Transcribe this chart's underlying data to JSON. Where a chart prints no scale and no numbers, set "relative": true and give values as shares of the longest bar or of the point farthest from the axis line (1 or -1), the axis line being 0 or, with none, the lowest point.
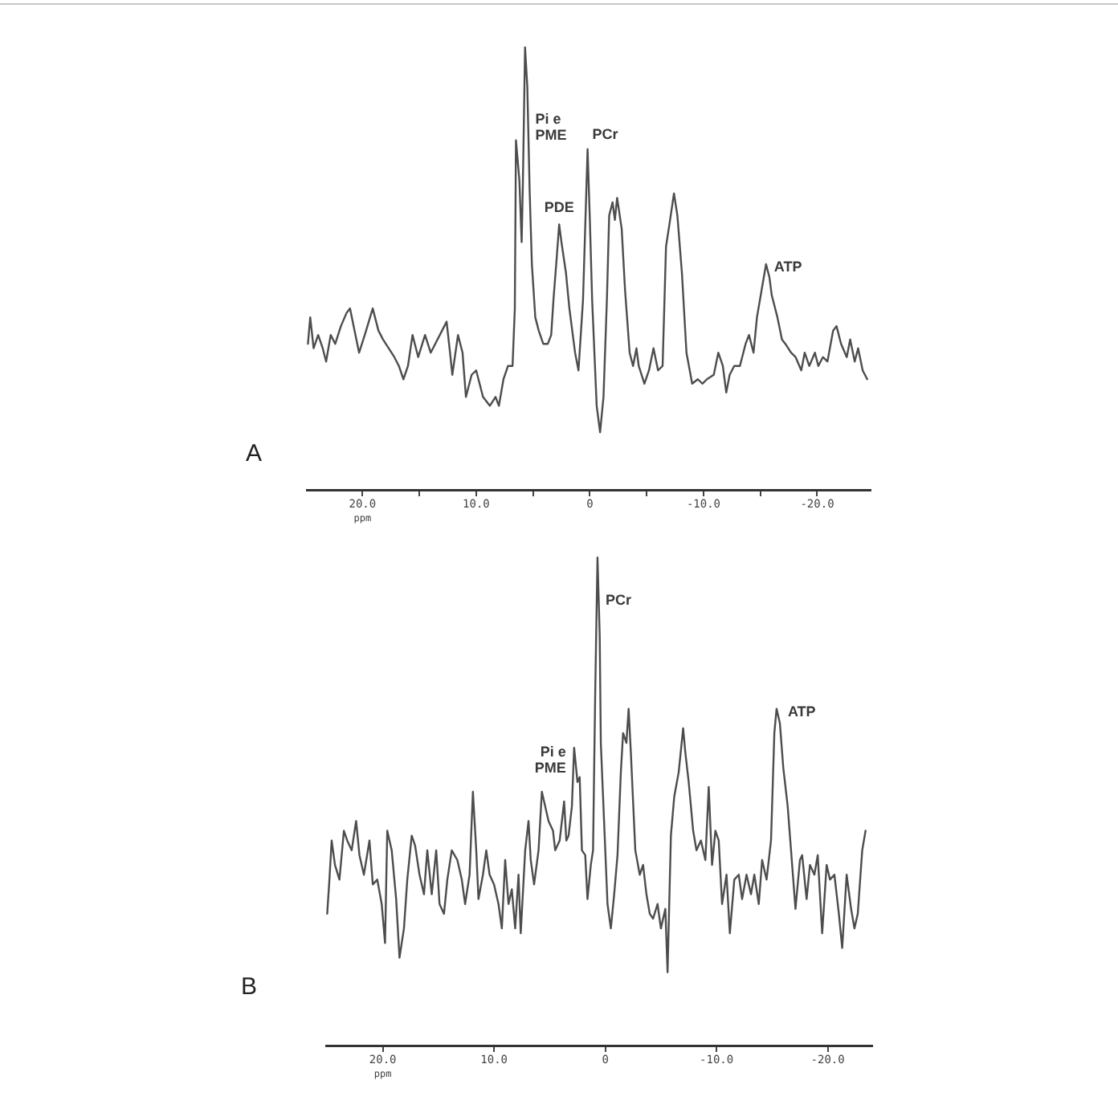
{
  "chart_data": [
    {
      "type": "line",
      "title": "A",
      "xlabel": "ppm",
      "relative": true,
      "color": "#4d4d4d",
      "xlim": [
        24.9,
        -24.7
      ],
      "xticks": [
        {
          "value": 20,
          "label": "20.0"
        },
        {
          "value": 15,
          "label": null
        },
        {
          "value": 10,
          "label": "10.0"
        },
        {
          "value": 5,
          "label": null
        },
        0,
        {
          "value": -5,
          "label": null
        },
        {
          "value": -10,
          "label": "-10.0"
        },
        {
          "value": -15,
          "label": null
        },
        {
          "value": -20,
          "label": "-20.0"
        }
      ],
      "x": [
        24.8,
        24.6,
        24.3,
        23.9,
        23.5,
        23.2,
        22.8,
        22.4,
        21.9,
        21.4,
        21.1,
        20.7,
        20.3,
        19.8,
        19.1,
        18.6,
        18.2,
        17.7,
        17.2,
        16.8,
        16.4,
        16.0,
        15.6,
        15.1,
        14.5,
        14.0,
        13.6,
        13.0,
        12.6,
        12.3,
        12.1,
        11.6,
        11.2,
        10.9,
        10.4,
        10.0,
        9.4,
        8.8,
        8.3,
        8.0,
        7.6,
        7.2,
        6.8,
        6.6,
        6.5,
        6.2,
        6.0,
        5.9,
        5.7,
        5.5,
        5.3,
        5.1,
        4.8,
        4.5,
        4.1,
        3.7,
        3.4,
        3.2,
        2.9,
        2.7,
        2.5,
        2.1,
        1.8,
        1.3,
        1.0,
        0.6,
        0.2,
        0.0,
        -0.2,
        -0.6,
        -0.9,
        -1.2,
        -1.5,
        -1.7,
        -2.0,
        -2.2,
        -2.4,
        -2.8,
        -3.1,
        -3.5,
        -3.8,
        -4.1,
        -4.3,
        -4.8,
        -5.2,
        -5.6,
        -6.0,
        -6.4,
        -6.7,
        -7.0,
        -7.4,
        -7.7,
        -8.1,
        -8.5,
        -9.0,
        -9.5,
        -9.9,
        -10.3,
        -10.9,
        -11.3,
        -11.7,
        -12.0,
        -12.3,
        -12.7,
        -13.2,
        -13.7,
        -14.0,
        -14.4,
        -14.7,
        -15.1,
        -15.5,
        -15.8,
        -16.0,
        -16.5,
        -16.9,
        -17.2,
        -17.7,
        -18.1,
        -18.6,
        -18.9,
        -19.3,
        -19.8,
        -20.1,
        -20.5,
        -20.9,
        -21.4,
        -21.7,
        -22.1,
        -22.6,
        -22.9,
        -23.3,
        -23.6,
        -24.0,
        -24.4
      ],
      "values": [
        0.33,
        0.39,
        0.32,
        0.35,
        0.32,
        0.29,
        0.35,
        0.33,
        0.37,
        0.4,
        0.41,
        0.36,
        0.31,
        0.35,
        0.41,
        0.36,
        0.34,
        0.32,
        0.3,
        0.28,
        0.25,
        0.28,
        0.35,
        0.3,
        0.35,
        0.31,
        0.33,
        0.36,
        0.38,
        0.31,
        0.26,
        0.35,
        0.31,
        0.21,
        0.26,
        0.27,
        0.21,
        0.19,
        0.21,
        0.19,
        0.25,
        0.28,
        0.28,
        0.41,
        0.79,
        0.7,
        0.56,
        0.68,
        1.0,
        0.91,
        0.68,
        0.51,
        0.39,
        0.36,
        0.33,
        0.33,
        0.35,
        0.43,
        0.53,
        0.6,
        0.56,
        0.49,
        0.41,
        0.31,
        0.27,
        0.43,
        0.77,
        0.61,
        0.43,
        0.19,
        0.13,
        0.21,
        0.43,
        0.62,
        0.65,
        0.61,
        0.66,
        0.59,
        0.45,
        0.31,
        0.28,
        0.32,
        0.28,
        0.24,
        0.27,
        0.32,
        0.27,
        0.28,
        0.55,
        0.6,
        0.67,
        0.62,
        0.49,
        0.31,
        0.24,
        0.25,
        0.24,
        0.25,
        0.26,
        0.31,
        0.28,
        0.22,
        0.26,
        0.28,
        0.28,
        0.33,
        0.35,
        0.31,
        0.39,
        0.45,
        0.51,
        0.48,
        0.44,
        0.39,
        0.34,
        0.33,
        0.31,
        0.3,
        0.27,
        0.31,
        0.28,
        0.31,
        0.28,
        0.3,
        0.29,
        0.36,
        0.37,
        0.33,
        0.3,
        0.34,
        0.29,
        0.32,
        0.27,
        0.25
      ],
      "annotations": [
        {
          "text": "Pi e\nPME",
          "x": 5.5,
          "y": 0.91
        },
        {
          "text": "PCr",
          "x": 0.2,
          "y": 0.77
        },
        {
          "text": "PDE",
          "x": 2.7,
          "y": 0.6
        },
        {
          "text": "ATP",
          "x": -15.5,
          "y": 0.51
        }
      ]
    },
    {
      "type": "line",
      "title": "B",
      "xlabel": "ppm",
      "relative": true,
      "color": "#4d4d4d",
      "xlim": [
        25.1,
        -24.0
      ],
      "xticks": [
        {
          "value": 20,
          "label": "20.0"
        },
        {
          "value": 10,
          "label": "10.0"
        },
        0,
        {
          "value": -10,
          "label": "-10.0"
        },
        {
          "value": -20,
          "label": "-20.0"
        }
      ],
      "x": [
        25.0,
        24.8,
        24.6,
        24.3,
        23.9,
        23.5,
        23.2,
        22.8,
        22.4,
        22.1,
        21.7,
        21.2,
        20.9,
        20.5,
        20.1,
        19.8,
        19.6,
        19.2,
        18.8,
        18.5,
        18.1,
        17.8,
        17.4,
        17.1,
        16.7,
        16.3,
        16.0,
        15.6,
        15.2,
        14.9,
        14.5,
        14.2,
        13.8,
        13.3,
        12.9,
        12.6,
        12.2,
        11.9,
        11.6,
        11.4,
        11.0,
        10.7,
        10.4,
        10.0,
        9.6,
        9.3,
        9.0,
        8.7,
        8.4,
        8.1,
        7.8,
        7.6,
        7.2,
        6.9,
        6.7,
        6.4,
        6.0,
        5.7,
        5.4,
        5.1,
        4.7,
        4.5,
        4.1,
        3.7,
        3.5,
        3.3,
        3.0,
        2.8,
        2.5,
        2.3,
        2.1,
        1.8,
        1.6,
        1.3,
        1.1,
        0.9,
        0.7,
        0.5,
        0.4,
        0.0,
        -0.2,
        -0.5,
        -0.8,
        -1.1,
        -1.4,
        -1.6,
        -1.9,
        -2.1,
        -2.3,
        -2.7,
        -3.1,
        -3.4,
        -3.7,
        -4.0,
        -4.3,
        -4.7,
        -5.0,
        -5.4,
        -5.6,
        -5.9,
        -6.2,
        -6.6,
        -7.0,
        -7.2,
        -7.5,
        -7.9,
        -8.2,
        -8.6,
        -9.0,
        -9.3,
        -9.6,
        -9.9,
        -10.2,
        -10.5,
        -10.9,
        -11.2,
        -11.6,
        -12.0,
        -12.3,
        -12.7,
        -13.1,
        -13.4,
        -13.8,
        -14.1,
        -14.5,
        -14.9,
        -15.2,
        -15.4,
        -15.7,
        -16.0,
        -16.4,
        -16.7,
        -17.1,
        -17.5,
        -17.7,
        -18.1,
        -18.4,
        -18.8,
        -19.1,
        -19.5,
        -19.9,
        -20.2,
        -20.6,
        -21.0,
        -21.3,
        -21.7,
        -22.1,
        -22.4,
        -22.7,
        -23.1,
        -23.4
      ],
      "values": [
        0.27,
        0.34,
        0.42,
        0.37,
        0.34,
        0.44,
        0.42,
        0.4,
        0.46,
        0.39,
        0.35,
        0.42,
        0.33,
        0.34,
        0.29,
        0.21,
        0.44,
        0.4,
        0.3,
        0.18,
        0.24,
        0.34,
        0.43,
        0.41,
        0.35,
        0.31,
        0.4,
        0.31,
        0.4,
        0.29,
        0.27,
        0.34,
        0.4,
        0.38,
        0.34,
        0.29,
        0.35,
        0.52,
        0.4,
        0.3,
        0.35,
        0.4,
        0.35,
        0.33,
        0.29,
        0.24,
        0.38,
        0.29,
        0.32,
        0.24,
        0.35,
        0.23,
        0.4,
        0.46,
        0.38,
        0.33,
        0.4,
        0.52,
        0.49,
        0.46,
        0.44,
        0.4,
        0.42,
        0.5,
        0.42,
        0.43,
        0.49,
        0.61,
        0.54,
        0.55,
        0.4,
        0.39,
        0.3,
        0.37,
        0.4,
        0.73,
        1.0,
        0.84,
        0.62,
        0.4,
        0.29,
        0.24,
        0.31,
        0.39,
        0.56,
        0.64,
        0.62,
        0.69,
        0.6,
        0.4,
        0.35,
        0.37,
        0.31,
        0.27,
        0.26,
        0.29,
        0.24,
        0.28,
        0.15,
        0.43,
        0.51,
        0.56,
        0.65,
        0.6,
        0.54,
        0.44,
        0.4,
        0.42,
        0.38,
        0.53,
        0.37,
        0.44,
        0.42,
        0.29,
        0.35,
        0.23,
        0.34,
        0.35,
        0.3,
        0.35,
        0.31,
        0.35,
        0.29,
        0.38,
        0.34,
        0.42,
        0.64,
        0.69,
        0.66,
        0.57,
        0.49,
        0.4,
        0.28,
        0.38,
        0.39,
        0.3,
        0.37,
        0.35,
        0.39,
        0.23,
        0.37,
        0.34,
        0.35,
        0.27,
        0.2,
        0.35,
        0.28,
        0.24,
        0.27,
        0.4,
        0.44
      ],
      "annotations": [
        {
          "text": "PCr",
          "x": 0.7,
          "y": 1.0
        },
        {
          "text": "Pi e\nPME",
          "x": 2.8,
          "y": 0.61
        },
        {
          "text": "ATP",
          "x": -15.4,
          "y": 0.69
        }
      ]
    }
  ]
}
